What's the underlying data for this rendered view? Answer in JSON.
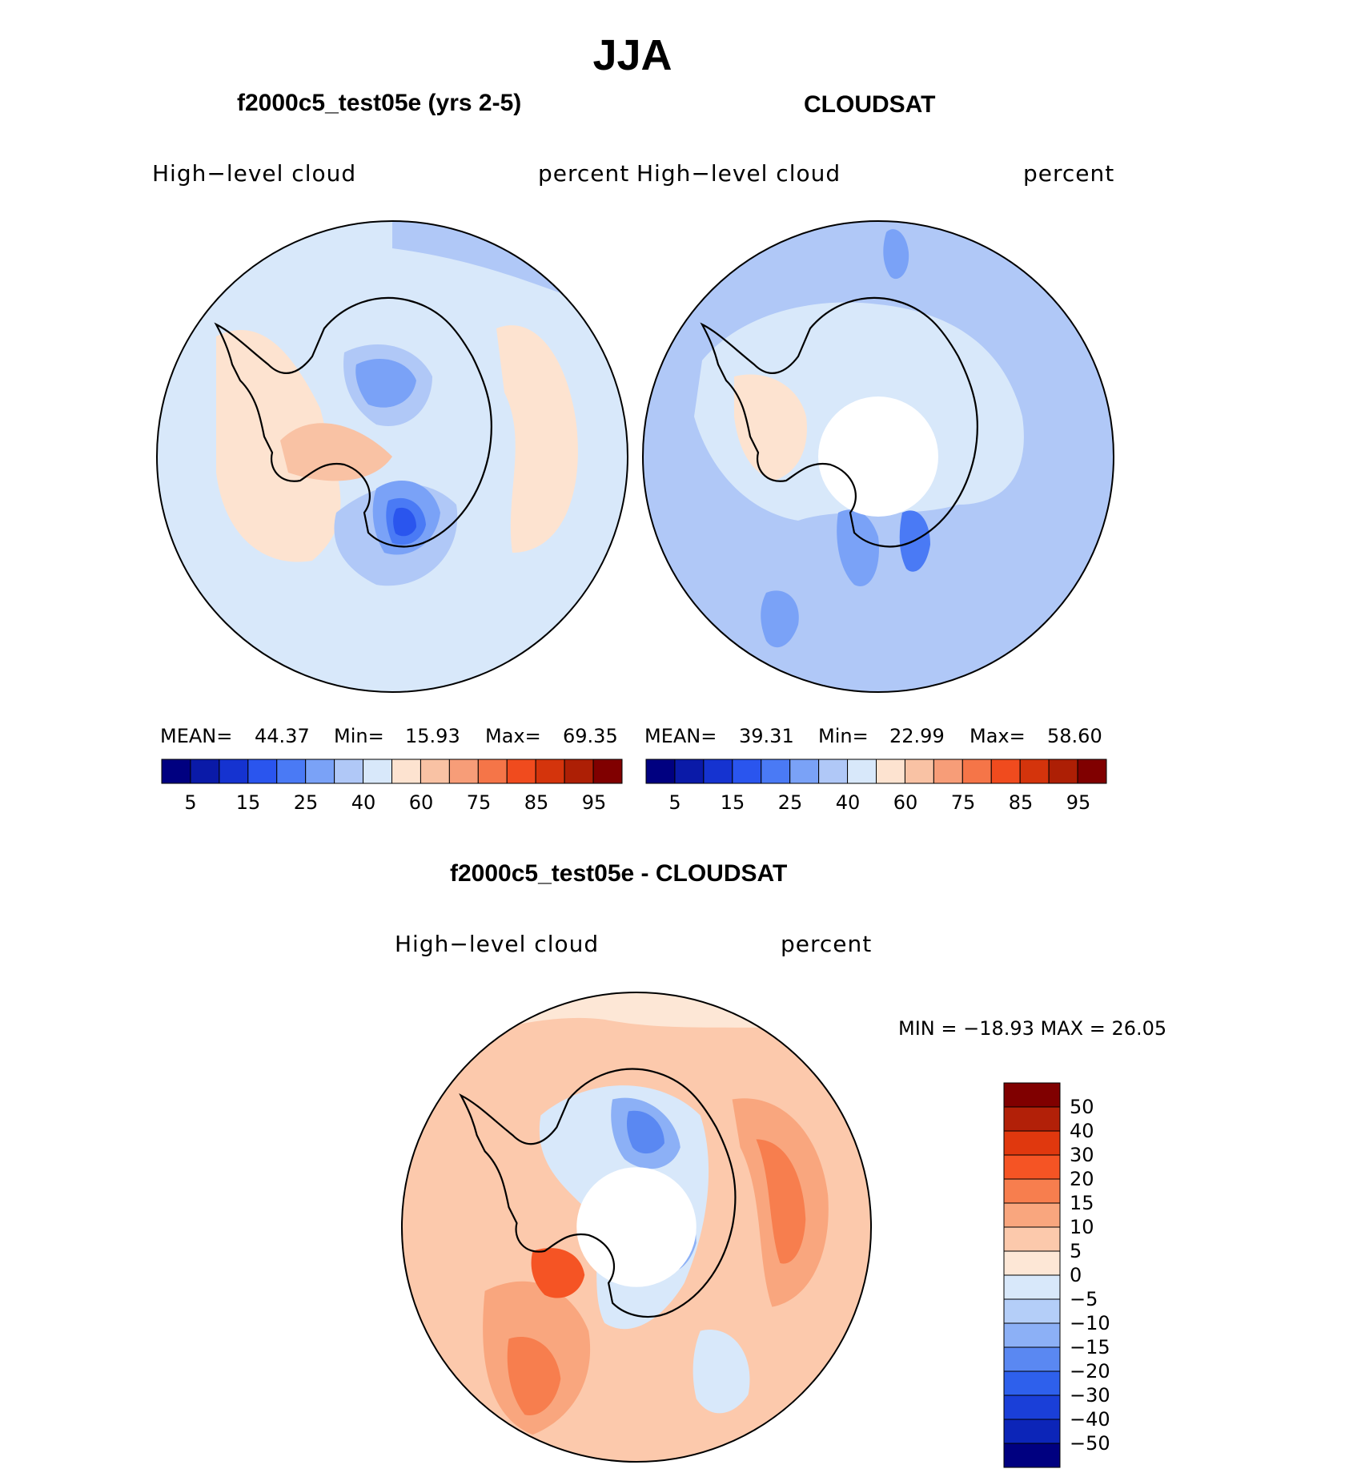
{
  "main_title": "JJA",
  "panels": [
    {
      "title": "f2000c5_test05e (yrs 2-5)",
      "variable": "High−level  cloud",
      "units": "percent",
      "stats": {
        "mean_label": "MEAN=",
        "mean": "44.37",
        "min_label": "Min=",
        "min": "15.93",
        "max_label": "Max=",
        "max": "69.35"
      },
      "colorbar_ticks": [
        "5",
        "15",
        "25",
        "40",
        "60",
        "75",
        "85",
        "95"
      ]
    },
    {
      "title": "CLOUDSAT",
      "variable": "High−level  cloud",
      "units": "percent",
      "stats": {
        "mean_label": "MEAN=",
        "mean": "39.31",
        "min_label": "Min=",
        "min": "22.99",
        "max_label": "Max=",
        "max": "58.60"
      },
      "colorbar_ticks": [
        "5",
        "15",
        "25",
        "40",
        "60",
        "75",
        "85",
        "95"
      ]
    },
    {
      "title": "f2000c5_test05e - CLOUDSAT",
      "variable": "High−level  cloud",
      "units": "percent",
      "stats_text": "MIN  =  −18.93  MAX  =    26.05",
      "colorbar_ticks": [
        "50",
        "40",
        "30",
        "20",
        "15",
        "10",
        "5",
        "0",
        "−5",
        "−10",
        "−15",
        "−20",
        "−30",
        "−40",
        "−50"
      ]
    }
  ],
  "colors": {
    "abs_scale": [
      "#000080",
      "#0a1aa8",
      "#1533d0",
      "#2a55ee",
      "#4a7af5",
      "#7aa2f7",
      "#b0c8f7",
      "#d8e8fa",
      "#fde3d0",
      "#f9c2a4",
      "#f79d78",
      "#f57548",
      "#f04b1e",
      "#d4340c",
      "#ad1f05",
      "#800000"
    ],
    "diff_scale": [
      "#800000",
      "#b22008",
      "#e0380e",
      "#f55424",
      "#f77e4e",
      "#f9a67e",
      "#fcc9ac",
      "#fde7d6",
      "#d8e8fa",
      "#b4cef8",
      "#8cb0f6",
      "#5a88f2",
      "#2e60ec",
      "#1a3fd8",
      "#0c25b8",
      "#000080"
    ],
    "land_outline": "#000000",
    "plot_border": "#000000",
    "missing": "#ffffff"
  }
}
